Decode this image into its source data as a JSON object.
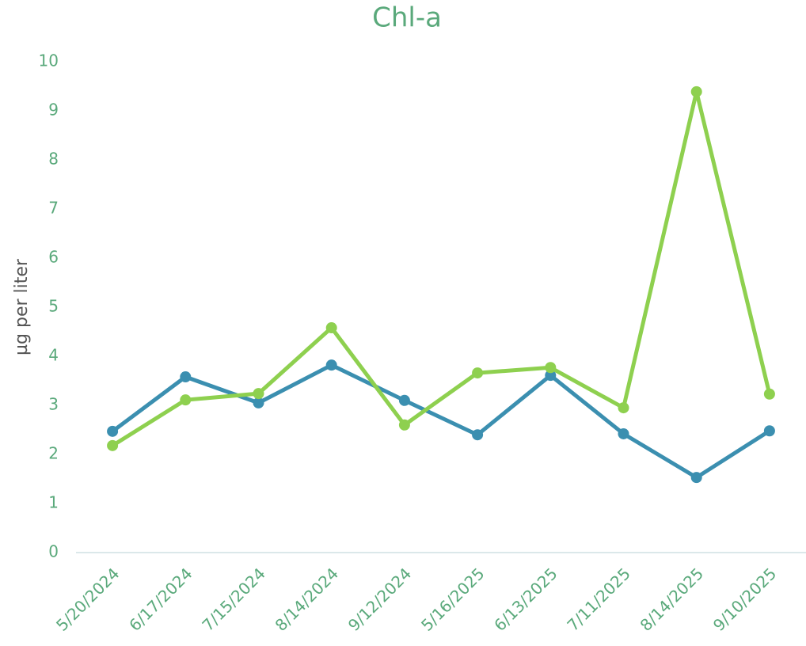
{
  "chart_data": {
    "type": "line",
    "title": "Chl-a",
    "y_label": "µg per liter",
    "categories": [
      "5/20/2024",
      "6/17/2024",
      "7/15/2024",
      "8/14/2024",
      "9/12/2024",
      "5/16/2025",
      "6/13/2025",
      "7/11/2025",
      "8/14/2025",
      "9/10/2025"
    ],
    "series": [
      {
        "color": "#3b8fb0",
        "values": [
          2.47,
          3.58,
          3.05,
          3.82,
          3.1,
          2.4,
          3.61,
          2.42,
          1.53,
          2.48
        ]
      },
      {
        "color": "#8ed04f",
        "values": [
          2.18,
          3.11,
          3.24,
          4.58,
          2.6,
          3.66,
          3.77,
          2.95,
          9.39,
          3.23
        ]
      }
    ],
    "ylim": [
      0,
      10
    ],
    "yticks": [
      0,
      1,
      2,
      3,
      4,
      5,
      6,
      7,
      8,
      9,
      10
    ],
    "grid": false
  }
}
